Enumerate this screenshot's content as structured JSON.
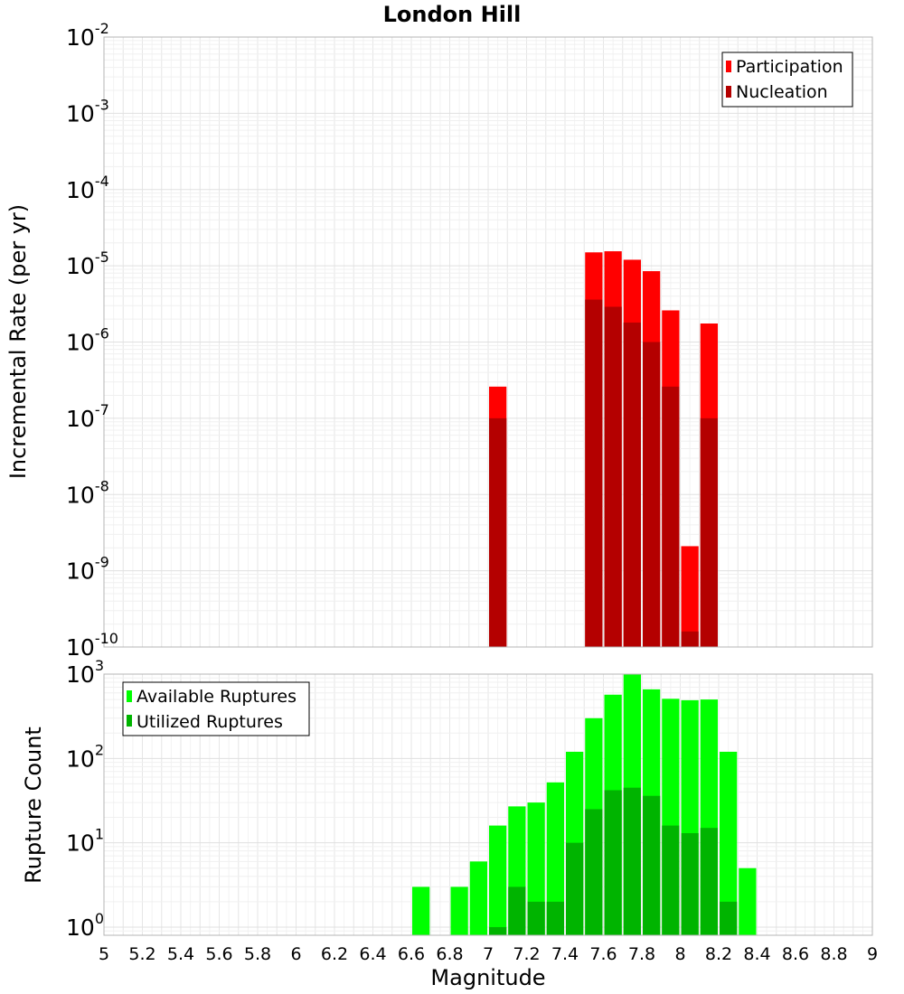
{
  "chart_data": [
    {
      "type": "bar",
      "title": "London Hill",
      "xlabel": "",
      "ylabel": "Incremental Rate (per yr)",
      "yscale": "log",
      "ylim": [
        1e-10,
        0.01
      ],
      "xlim": [
        5,
        9
      ],
      "ytick_labels": [
        {
          "base": "10",
          "exp": "-10"
        },
        {
          "base": "10",
          "exp": "-9"
        },
        {
          "base": "10",
          "exp": "-8"
        },
        {
          "base": "10",
          "exp": "-7"
        },
        {
          "base": "10",
          "exp": "-6"
        },
        {
          "base": "10",
          "exp": "-5"
        },
        {
          "base": "10",
          "exp": "-4"
        },
        {
          "base": "10",
          "exp": "-3"
        },
        {
          "base": "10",
          "exp": "-2"
        }
      ],
      "grid": true,
      "legend_position": "top-right",
      "x": [
        7.05,
        7.55,
        7.65,
        7.75,
        7.85,
        7.95,
        8.05,
        8.15
      ],
      "series": [
        {
          "name": "Participation",
          "color": "#ff0000",
          "values": [
            2.6e-07,
            1.5e-05,
            1.55e-05,
            1.2e-05,
            8.5e-06,
            2.6e-06,
            2.1e-09,
            1.75e-06
          ]
        },
        {
          "name": "Nucleation",
          "color": "#b40000",
          "values": [
            1e-07,
            3.6e-06,
            2.9e-06,
            1.8e-06,
            1e-06,
            2.6e-07,
            1.6e-10,
            1e-07
          ]
        }
      ]
    },
    {
      "type": "bar",
      "title": "",
      "xlabel": "Magnitude",
      "ylabel": "Rupture Count",
      "yscale": "log",
      "ylim": [
        0.8,
        1000
      ],
      "xlim": [
        5,
        9
      ],
      "ytick_labels": [
        {
          "base": "10",
          "exp": "0"
        },
        {
          "base": "10",
          "exp": "1"
        },
        {
          "base": "10",
          "exp": "2"
        },
        {
          "base": "10",
          "exp": "3"
        }
      ],
      "xtick_labels": [
        "5",
        "5.2",
        "5.4",
        "5.6",
        "5.8",
        "6",
        "6.2",
        "6.4",
        "6.6",
        "6.8",
        "7",
        "7.2",
        "7.4",
        "7.6",
        "7.8",
        "8",
        "8.2",
        "8.4",
        "8.6",
        "8.8",
        "9"
      ],
      "grid": true,
      "legend_position": "top-left",
      "x": [
        6.65,
        6.85,
        6.95,
        7.05,
        7.15,
        7.25,
        7.35,
        7.45,
        7.55,
        7.65,
        7.75,
        7.85,
        7.95,
        8.05,
        8.15,
        8.25,
        8.35
      ],
      "series": [
        {
          "name": "Available Ruptures",
          "color": "#00ff00",
          "values": [
            3,
            3,
            6,
            16,
            27,
            30,
            52,
            120,
            300,
            570,
            1000,
            660,
            510,
            490,
            500,
            120,
            5
          ]
        },
        {
          "name": "Utilized Ruptures",
          "color": "#00b400",
          "values": [
            0,
            0,
            0,
            1,
            3,
            2,
            2,
            10,
            25,
            42,
            45,
            36,
            16,
            13,
            15,
            2,
            0
          ]
        }
      ]
    }
  ]
}
